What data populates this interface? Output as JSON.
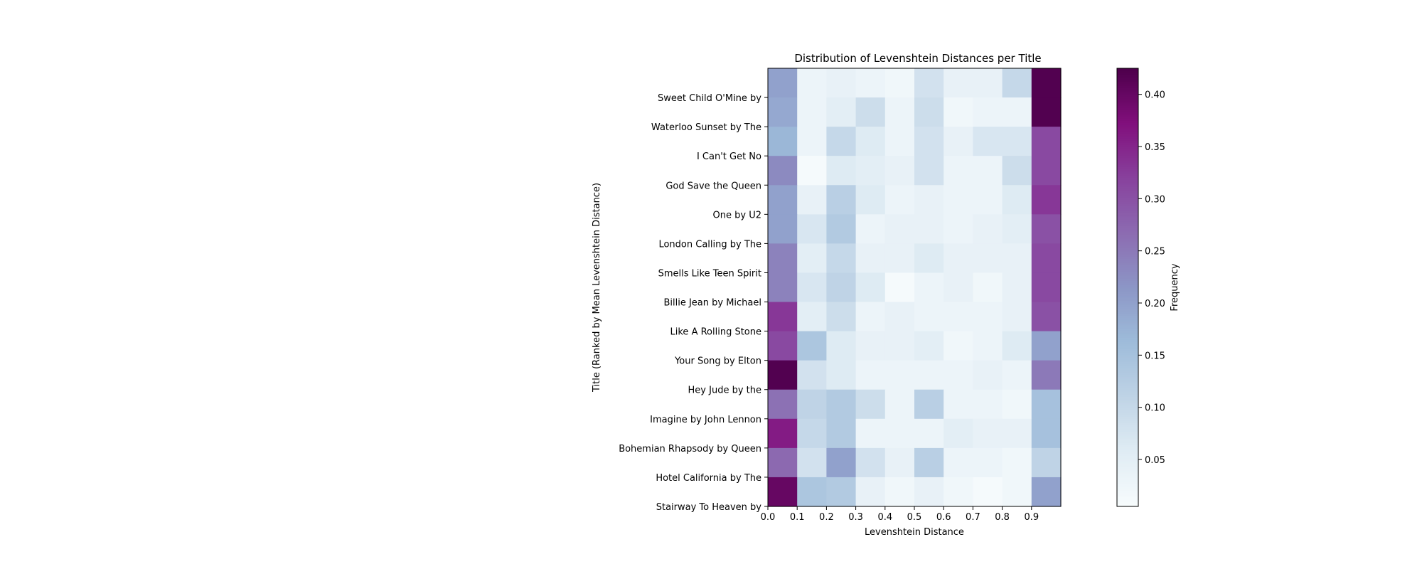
{
  "chart_data": {
    "type": "heatmap",
    "title": "Distribution of Levenshtein Distances per Title",
    "xlabel": "Levenshtein Distance",
    "ylabel": "Title (Ranked by Mean Levenshtein Distance)",
    "colorbar_label": "Frequency",
    "colormap": "BuPu",
    "vmin": 0.005,
    "vmax": 0.425,
    "x_tick_labels": [
      "0.0",
      "0.1",
      "0.2",
      "0.3",
      "0.4",
      "0.5",
      "0.6",
      "0.7",
      "0.8",
      "0.9"
    ],
    "colorbar_ticks": [
      0.05,
      0.1,
      0.15,
      0.2,
      0.25,
      0.3,
      0.35,
      0.4
    ],
    "colorbar_tick_labels": [
      "0.05",
      "0.10",
      "0.15",
      "0.20",
      "0.25",
      "0.30",
      "0.35",
      "0.40"
    ],
    "y_tick_labels": [
      "Sweet Child O'Mine by",
      "Waterloo Sunset by The",
      "I Can't Get No",
      "God Save the Queen",
      "One by U2",
      "London Calling by The",
      "Smells Like Teen Spirit",
      "Billie Jean by Michael",
      "Like A Rolling Stone",
      "Your Song by Elton",
      "Hey Jude by the",
      "Imagine by John Lennon",
      "Bohemian Rhapsody by Queen",
      "Hotel California by The",
      "Stairway To Heaven by"
    ],
    "columns": [
      "0.0",
      "0.1",
      "0.2",
      "0.3",
      "0.4",
      "0.5",
      "0.6",
      "0.7",
      "0.8",
      "0.9"
    ],
    "rows": [
      [
        0.2,
        0.03,
        0.04,
        0.03,
        0.02,
        0.08,
        0.04,
        0.04,
        0.1,
        0.42
      ],
      [
        0.19,
        0.03,
        0.05,
        0.09,
        0.03,
        0.09,
        0.02,
        0.03,
        0.03,
        0.42
      ],
      [
        0.17,
        0.03,
        0.1,
        0.06,
        0.03,
        0.08,
        0.04,
        0.07,
        0.07,
        0.31
      ],
      [
        0.23,
        0.01,
        0.06,
        0.05,
        0.04,
        0.08,
        0.03,
        0.03,
        0.09,
        0.31
      ],
      [
        0.2,
        0.04,
        0.12,
        0.06,
        0.03,
        0.04,
        0.03,
        0.03,
        0.06,
        0.33
      ],
      [
        0.2,
        0.07,
        0.13,
        0.03,
        0.04,
        0.04,
        0.03,
        0.04,
        0.05,
        0.3
      ],
      [
        0.24,
        0.05,
        0.1,
        0.04,
        0.04,
        0.06,
        0.04,
        0.04,
        0.04,
        0.31
      ],
      [
        0.24,
        0.07,
        0.11,
        0.06,
        0.01,
        0.03,
        0.04,
        0.02,
        0.04,
        0.31
      ],
      [
        0.33,
        0.05,
        0.09,
        0.03,
        0.04,
        0.03,
        0.03,
        0.03,
        0.04,
        0.3
      ],
      [
        0.31,
        0.14,
        0.06,
        0.04,
        0.04,
        0.05,
        0.02,
        0.03,
        0.06,
        0.2
      ],
      [
        0.42,
        0.08,
        0.06,
        0.03,
        0.03,
        0.03,
        0.03,
        0.04,
        0.03,
        0.25
      ],
      [
        0.26,
        0.11,
        0.13,
        0.09,
        0.03,
        0.12,
        0.03,
        0.03,
        0.02,
        0.15
      ],
      [
        0.36,
        0.1,
        0.13,
        0.03,
        0.03,
        0.03,
        0.05,
        0.04,
        0.04,
        0.15
      ],
      [
        0.27,
        0.08,
        0.2,
        0.08,
        0.04,
        0.12,
        0.03,
        0.03,
        0.02,
        0.11
      ],
      [
        0.4,
        0.14,
        0.13,
        0.04,
        0.02,
        0.04,
        0.02,
        0.01,
        0.02,
        0.2
      ]
    ]
  }
}
